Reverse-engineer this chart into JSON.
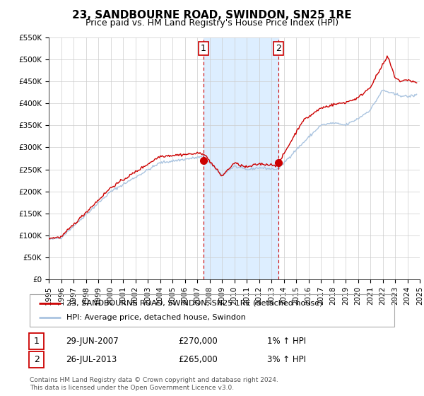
{
  "title": "23, SANDBOURNE ROAD, SWINDON, SN25 1RE",
  "subtitle": "Price paid vs. HM Land Registry's House Price Index (HPI)",
  "xlim": [
    1995,
    2025
  ],
  "ylim": [
    0,
    550000
  ],
  "yticks": [
    0,
    50000,
    100000,
    150000,
    200000,
    250000,
    300000,
    350000,
    400000,
    450000,
    500000,
    550000
  ],
  "ytick_labels": [
    "£0",
    "£50K",
    "£100K",
    "£150K",
    "£200K",
    "£250K",
    "£300K",
    "£350K",
    "£400K",
    "£450K",
    "£500K",
    "£550K"
  ],
  "xticks": [
    1995,
    1996,
    1997,
    1998,
    1999,
    2000,
    2001,
    2002,
    2003,
    2004,
    2005,
    2006,
    2007,
    2008,
    2009,
    2010,
    2011,
    2012,
    2013,
    2014,
    2015,
    2016,
    2017,
    2018,
    2019,
    2020,
    2021,
    2022,
    2023,
    2024,
    2025
  ],
  "hpi_color": "#aac4e0",
  "price_color": "#cc0000",
  "marker_color": "#cc0000",
  "sale1_x": 2007.49,
  "sale1_y": 270000,
  "sale1_label": "1",
  "sale2_x": 2013.56,
  "sale2_y": 265000,
  "sale2_label": "2",
  "shade_x1": 2007.49,
  "shade_x2": 2013.56,
  "shade_color": "#ddeeff",
  "vline_color": "#cc0000",
  "legend_line1": "23, SANDBOURNE ROAD, SWINDON, SN25 1RE (detached house)",
  "legend_line2": "HPI: Average price, detached house, Swindon",
  "annotation1_date": "29-JUN-2007",
  "annotation1_price": "£270,000",
  "annotation1_hpi": "1% ↑ HPI",
  "annotation2_date": "26-JUL-2013",
  "annotation2_price": "£265,000",
  "annotation2_hpi": "3% ↑ HPI",
  "footer": "Contains HM Land Registry data © Crown copyright and database right 2024.\nThis data is licensed under the Open Government Licence v3.0.",
  "bg_color": "#ffffff",
  "grid_color": "#cccccc",
  "title_fontsize": 11,
  "subtitle_fontsize": 9,
  "tick_fontsize": 7.5,
  "legend_fontsize": 8,
  "annot_fontsize": 8.5,
  "footer_fontsize": 6.5
}
